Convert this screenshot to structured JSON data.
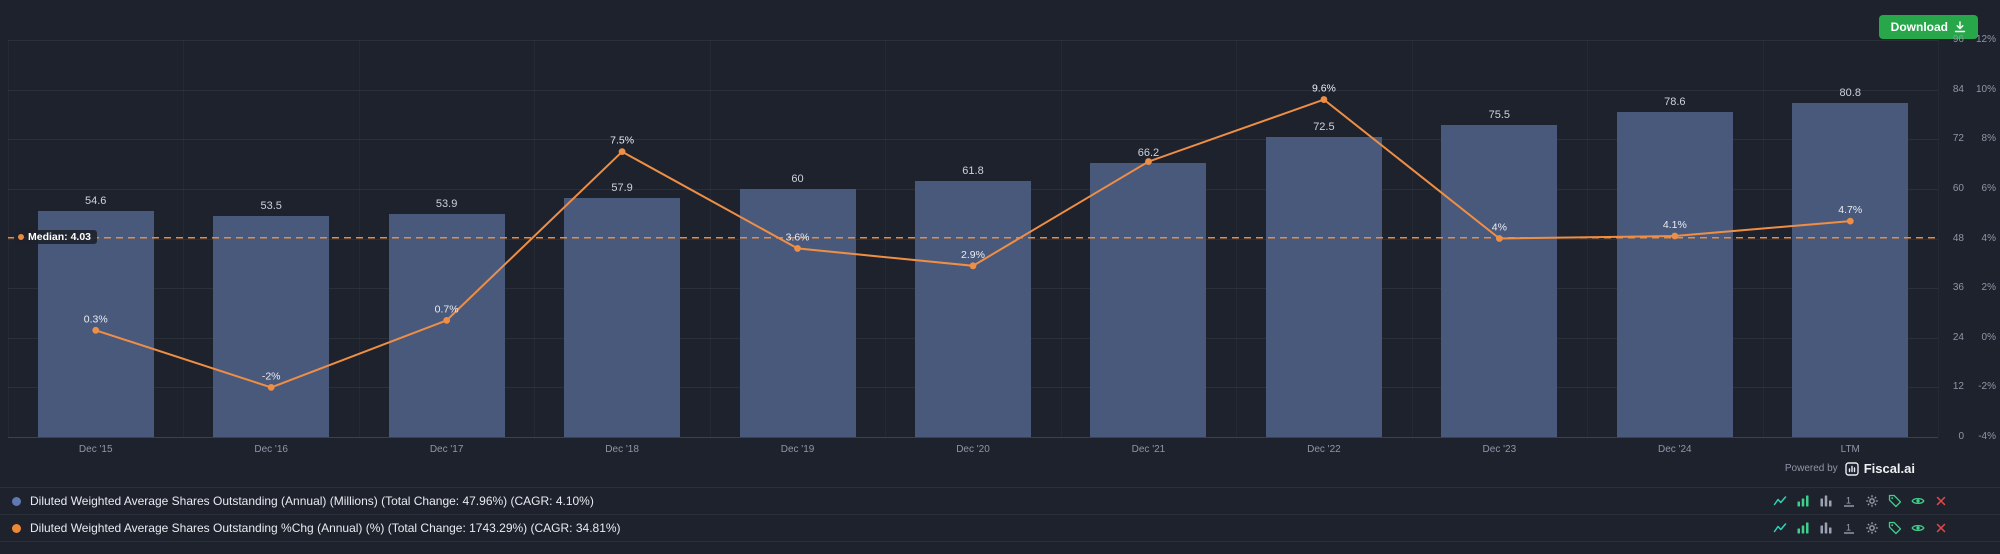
{
  "download_button": {
    "label": "Download"
  },
  "footer": {
    "powered_by": "Powered by",
    "brand": "Fiscal.ai"
  },
  "chart_data": {
    "type": "bar",
    "title": "",
    "categories": [
      "Dec '15",
      "Dec '16",
      "Dec '17",
      "Dec '18",
      "Dec '19",
      "Dec '20",
      "Dec '21",
      "Dec '22",
      "Dec '23",
      "Dec '24",
      "LTM"
    ],
    "series": [
      {
        "name": "Diluted Weighted Average Shares Outstanding (Annual) (Millions)",
        "type": "bar",
        "axis": "left",
        "color": "#49597c",
        "values": [
          54.6,
          53.5,
          53.9,
          57.9,
          60,
          61.8,
          66.2,
          72.5,
          75.5,
          78.6,
          80.8
        ],
        "labels": [
          "54.6",
          "53.5",
          "53.9",
          "57.9",
          "60",
          "61.8",
          "66.2",
          "72.5",
          "75.5",
          "78.6",
          "80.8"
        ]
      },
      {
        "name": "Diluted Weighted Average Shares Outstanding %Chg (Annual) (%)",
        "type": "line",
        "axis": "right",
        "color": "#ef8e45",
        "values": [
          0.3,
          -2,
          0.7,
          7.5,
          3.6,
          2.9,
          7.1,
          9.6,
          4,
          4.1,
          4.7
        ],
        "labels": [
          "0.3%",
          "-2%",
          "0.7%",
          "7.5%",
          "3.6%",
          "2.9%",
          "",
          "9.6%",
          "4%",
          "4.1%",
          "4.7%"
        ]
      }
    ],
    "left_axis": {
      "min": 0,
      "max": 96,
      "ticks": [
        96,
        84,
        72,
        60,
        48,
        36,
        24,
        12,
        0
      ]
    },
    "right_axis": {
      "min": -4,
      "max": 12,
      "ticks": [
        "12%",
        "10%",
        "8%",
        "6%",
        "4%",
        "2%",
        "0%",
        "-2%",
        "-4%"
      ]
    },
    "median": {
      "value": 4.03,
      "label": "Median: 4.03"
    },
    "grid": true,
    "legend_position": "bottom"
  },
  "legend": {
    "rows": [
      {
        "dot_color": "#6079b3",
        "text": "Diluted Weighted Average Shares Outstanding (Annual) (Millions) (Total Change: 47.96%) (CAGR: 4.10%)"
      },
      {
        "dot_color": "#ed8936",
        "text": "Diluted Weighted Average Shares Outstanding %Chg (Annual) (%) (Total Change: 1743.29%) (CAGR: 34.81%)"
      }
    ]
  }
}
